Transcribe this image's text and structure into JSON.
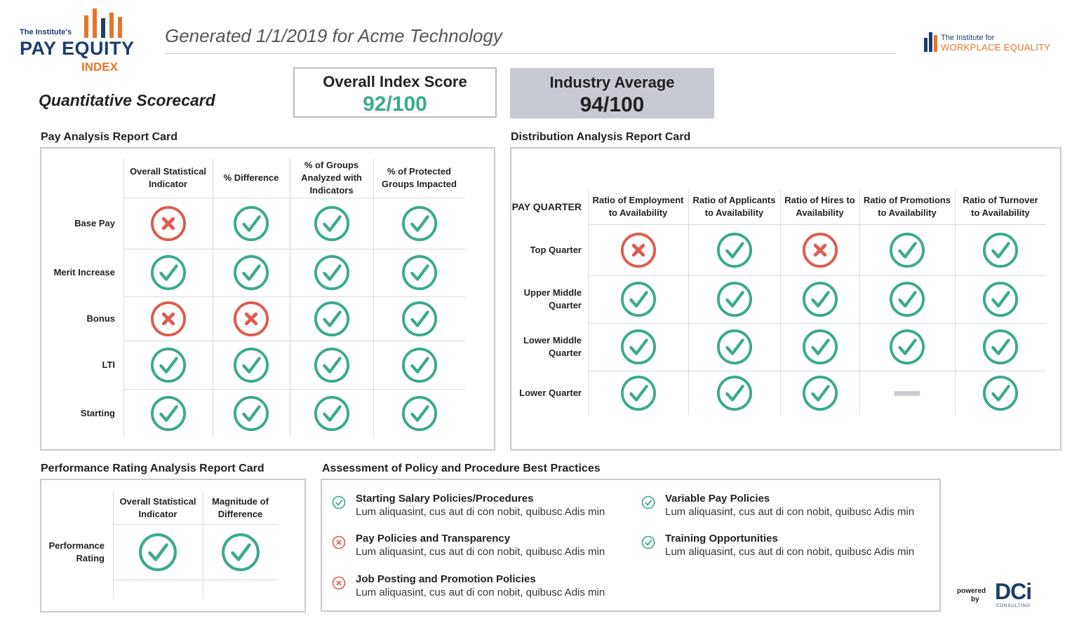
{
  "header": {
    "logo_small": "The Institute's",
    "logo_main": "PAY EQUITY",
    "logo_sub": "INDEX",
    "generated": "Generated 1/1/2019 for Acme Technology",
    "partner_small": "The Institute for",
    "partner_main": "WORKPLACE EQUALITY"
  },
  "page_title": "Quantitative Scorecard",
  "overall": {
    "label": "Overall Index Score",
    "value": "92/100",
    "color": "#3aaa8e"
  },
  "industry": {
    "label": "Industry Average",
    "value": "94/100",
    "bg": "#c8cad3"
  },
  "pay_card": {
    "title": "Pay Analysis Report Card",
    "columns": [
      "Overall Statistical Indicator",
      "% Difference",
      "% of Groups Analyzed with Indicators",
      "% of Protected Groups Impacted"
    ],
    "rows": [
      {
        "label": "Base Pay",
        "cells": [
          "fail",
          "pass",
          "pass",
          "pass"
        ]
      },
      {
        "label": "Merit Increase",
        "cells": [
          "pass",
          "pass",
          "pass",
          "pass"
        ]
      },
      {
        "label": "Bonus",
        "cells": [
          "fail",
          "fail",
          "pass",
          "pass"
        ]
      },
      {
        "label": "LTI",
        "cells": [
          "pass",
          "pass",
          "pass",
          "pass"
        ]
      },
      {
        "label": "Starting",
        "cells": [
          "pass",
          "pass",
          "pass",
          "pass"
        ]
      }
    ]
  },
  "dist_card": {
    "title": "Distribution Analysis Report Card",
    "corner": "PAY QUARTER",
    "columns": [
      "Ratio of Employment to Availability",
      "Ratio of Applicants to Availability",
      "Ratio of Hires to Availability",
      "Ratio of Promotions to Availability",
      "Ratio of Turnover to Availability"
    ],
    "rows": [
      {
        "label": "Top Quarter",
        "cells": [
          "fail",
          "pass",
          "fail",
          "pass",
          "pass"
        ]
      },
      {
        "label": "Upper Middle Quarter",
        "cells": [
          "pass",
          "pass",
          "pass",
          "pass",
          "pass"
        ]
      },
      {
        "label": "Lower Middle Quarter",
        "cells": [
          "pass",
          "pass",
          "pass",
          "pass",
          "pass"
        ]
      },
      {
        "label": "Lower Quarter",
        "cells": [
          "pass",
          "pass",
          "pass",
          "none",
          "pass"
        ]
      }
    ]
  },
  "perf_card": {
    "title": "Performance Rating Analysis Report Card",
    "columns": [
      "Overall Statistical Indicator",
      "Magnitude of Difference"
    ],
    "rows": [
      {
        "label": "Performance Rating",
        "cells": [
          "pass",
          "pass"
        ]
      }
    ]
  },
  "practices": {
    "title": "Assessment of Policy and Procedure Best Practices",
    "items": [
      {
        "status": "pass",
        "title": "Starting Salary Policies/Procedures",
        "text": "Lum aliquasint, cus aut di con nobit, quibusc Adis min"
      },
      {
        "status": "fail",
        "title": "Pay Policies and Transparency",
        "text": "Lum aliquasint, cus aut di con nobit, quibusc Adis min"
      },
      {
        "status": "fail",
        "title": "Job Posting and Promotion Policies",
        "text": "Lum aliquasint, cus aut di con nobit, quibusc Adis min"
      },
      {
        "status": "pass",
        "title": "Variable Pay Policies",
        "text": "Lum aliquasint, cus aut di con nobit, quibusc Adis min"
      },
      {
        "status": "pass",
        "title": "Training Opportunities",
        "text": "Lum aliquasint, cus aut di con nobit, quibusc Adis min"
      }
    ]
  },
  "footer": {
    "powered": "powered",
    "by": "by",
    "brand": "DCi",
    "brand_sub": "CONSULTING"
  },
  "colors": {
    "pass": "#3aaa8e",
    "fail": "#e05a4f",
    "none": "#c8cad3",
    "navy": "#1f3c6e",
    "orange": "#e8742a"
  }
}
